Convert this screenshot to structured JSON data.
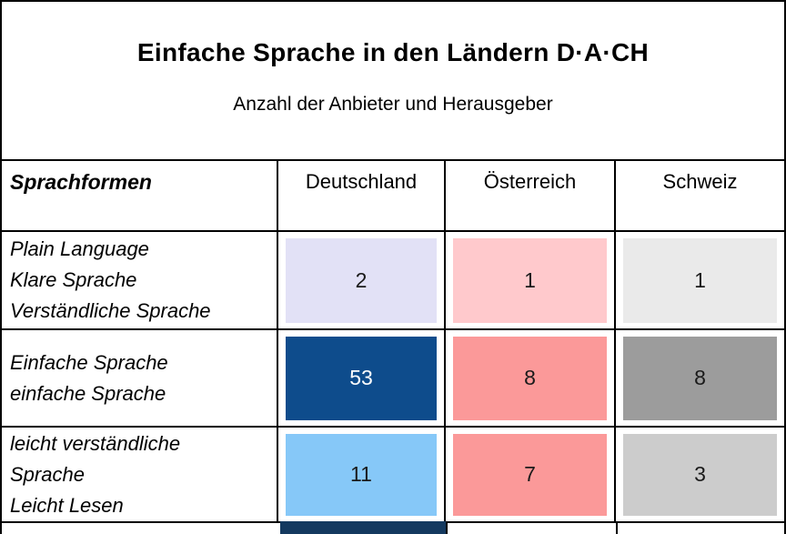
{
  "title": "Einfache Sprache in den Ländern D·A·CH",
  "subtitle": "Anzahl der Anbieter und Herausgeber",
  "table": {
    "headers": [
      "Sprachformen",
      "Deutschland",
      "Österreich",
      "Schweiz"
    ],
    "rows": [
      {
        "label_lines": [
          "Plain Language",
          "Klare Sprache",
          "Verständliche Sprache"
        ],
        "cells": [
          {
            "value": "2",
            "bg": "#E2E1F6",
            "fg": "#1A1A1A"
          },
          {
            "value": "1",
            "bg": "#FFC9CC",
            "fg": "#1A1A1A"
          },
          {
            "value": "1",
            "bg": "#EAEAEA",
            "fg": "#1A1A1A"
          }
        ]
      },
      {
        "label_lines": [
          "Einfache Sprache",
          "einfache Sprache"
        ],
        "cells": [
          {
            "value": "53",
            "bg": "#0E4C8C",
            "fg": "#FFFFFF"
          },
          {
            "value": "8",
            "bg": "#FB9999",
            "fg": "#1A1A1A"
          },
          {
            "value": "8",
            "bg": "#9C9C9C",
            "fg": "#1A1A1A"
          }
        ]
      },
      {
        "label_lines": [
          "leicht verständliche",
          "Sprache",
          "Leicht Lesen"
        ],
        "cells": [
          {
            "value": "11",
            "bg": "#86C8F8",
            "fg": "#1A1A1A"
          },
          {
            "value": "7",
            "bg": "#FB9999",
            "fg": "#1A1A1A"
          },
          {
            "value": "3",
            "bg": "#CCCCCC",
            "fg": "#1A1A1A"
          }
        ]
      }
    ]
  },
  "partial_next_row": {
    "bg": "#14395F"
  },
  "colors": {
    "border": "#000000",
    "background": "#FFFFFF"
  },
  "chart_data": {
    "type": "table",
    "title": "Einfache Sprache in den Ländern D·A·CH",
    "subtitle": "Anzahl der Anbieter und Herausgeber",
    "columns": [
      "Sprachformen",
      "Deutschland",
      "Österreich",
      "Schweiz"
    ],
    "rows": [
      {
        "sprachform": "Plain Language / Klare Sprache / Verständliche Sprache",
        "deutschland": 2,
        "oesterreich": 1,
        "schweiz": 1
      },
      {
        "sprachform": "Einfache Sprache / einfache Sprache",
        "deutschland": 53,
        "oesterreich": 8,
        "schweiz": 8
      },
      {
        "sprachform": "leicht verständliche Sprache / Leicht Lesen",
        "deutschland": 11,
        "oesterreich": 7,
        "schweiz": 3
      }
    ],
    "cell_colors": [
      [
        "#E2E1F6",
        "#FFC9CC",
        "#EAEAEA"
      ],
      [
        "#0E4C8C",
        "#FB9999",
        "#9C9C9C"
      ],
      [
        "#86C8F8",
        "#FB9999",
        "#CCCCCC"
      ]
    ],
    "layout": {
      "grid": true,
      "values_shown_in_cells": true
    }
  }
}
